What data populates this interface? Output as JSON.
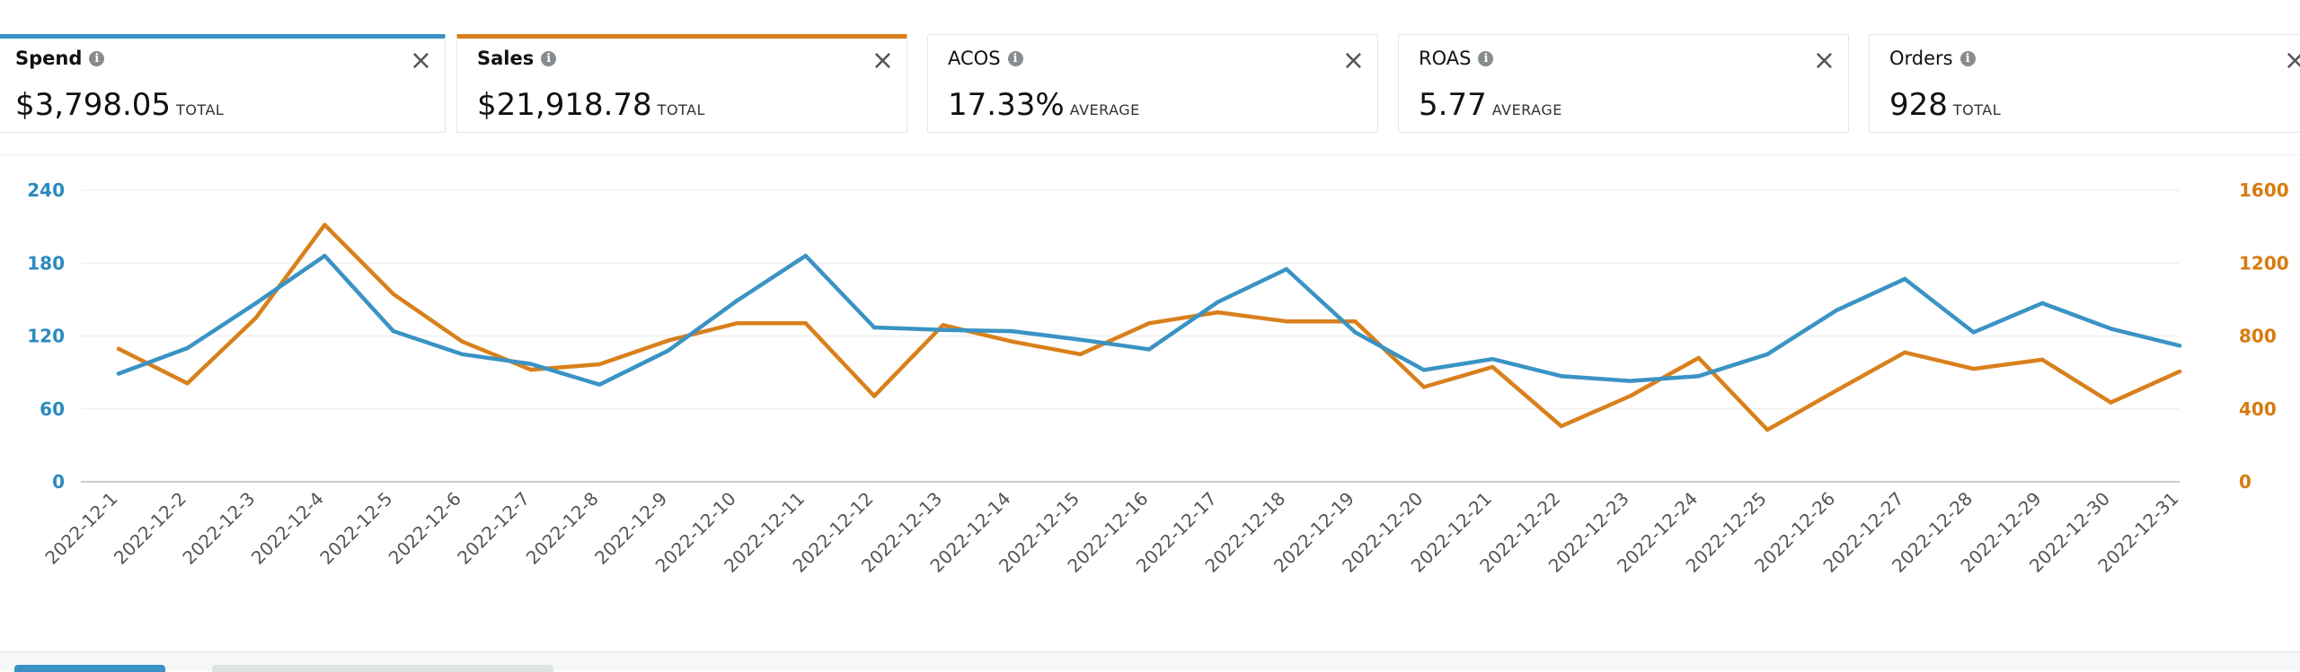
{
  "tiles": [
    {
      "label": "Spend",
      "value": "$3,798.05",
      "suffix": "TOTAL",
      "selected": true,
      "accent": "#3a93c4"
    },
    {
      "label": "Sales",
      "value": "$21,918.78",
      "suffix": "TOTAL",
      "selected": true,
      "accent": "#d9801c"
    },
    {
      "label": "ACOS",
      "value": "17.33%",
      "suffix": "AVERAGE",
      "selected": false
    },
    {
      "label": "ROAS",
      "value": "5.77",
      "suffix": "AVERAGE",
      "selected": false
    },
    {
      "label": "Orders",
      "value": "928",
      "suffix": "TOTAL",
      "selected": false
    }
  ],
  "icons": {
    "info": "info-icon",
    "close": "close-icon"
  },
  "chart_data": {
    "type": "line",
    "categories": [
      "2022-12-1",
      "2022-12-2",
      "2022-12-3",
      "2022-12-4",
      "2022-12-5",
      "2022-12-6",
      "2022-12-7",
      "2022-12-8",
      "2022-12-9",
      "2022-12-10",
      "2022-12-11",
      "2022-12-12",
      "2022-12-13",
      "2022-12-14",
      "2022-12-15",
      "2022-12-16",
      "2022-12-17",
      "2022-12-18",
      "2022-12-19",
      "2022-12-20",
      "2022-12-21",
      "2022-12-22",
      "2022-12-23",
      "2022-12-24",
      "2022-12-25",
      "2022-12-26",
      "2022-12-27",
      "2022-12-28",
      "2022-12-29",
      "2022-12-30",
      "2022-12-31"
    ],
    "series": [
      {
        "name": "Spend",
        "axis": "left",
        "color": "#3a93c4",
        "values": [
          89,
          110,
          147,
          186,
          124,
          105,
          97,
          80,
          108,
          149,
          186,
          127,
          125,
          124,
          117,
          109,
          148,
          175,
          123,
          92,
          101,
          87,
          83,
          87,
          105,
          141,
          167,
          123,
          147,
          126,
          112
        ]
      },
      {
        "name": "Sales",
        "axis": "right",
        "color": "#d9801c",
        "values": [
          730,
          540,
          900,
          1410,
          1030,
          770,
          615,
          645,
          775,
          870,
          870,
          470,
          860,
          770,
          700,
          870,
          930,
          880,
          880,
          520,
          630,
          305,
          470,
          680,
          285,
          500,
          710,
          620,
          670,
          435,
          605
        ]
      }
    ],
    "y_left": {
      "ticks": [
        "0",
        "60",
        "120",
        "180",
        "240"
      ],
      "range": [
        0,
        240
      ],
      "color": "#2b8abf"
    },
    "y_right": {
      "ticks": [
        "0",
        "400",
        "800",
        "1200",
        "1600"
      ],
      "range": [
        0,
        1600
      ],
      "color": "#d77b0f"
    },
    "grid": true,
    "legend": "none"
  }
}
